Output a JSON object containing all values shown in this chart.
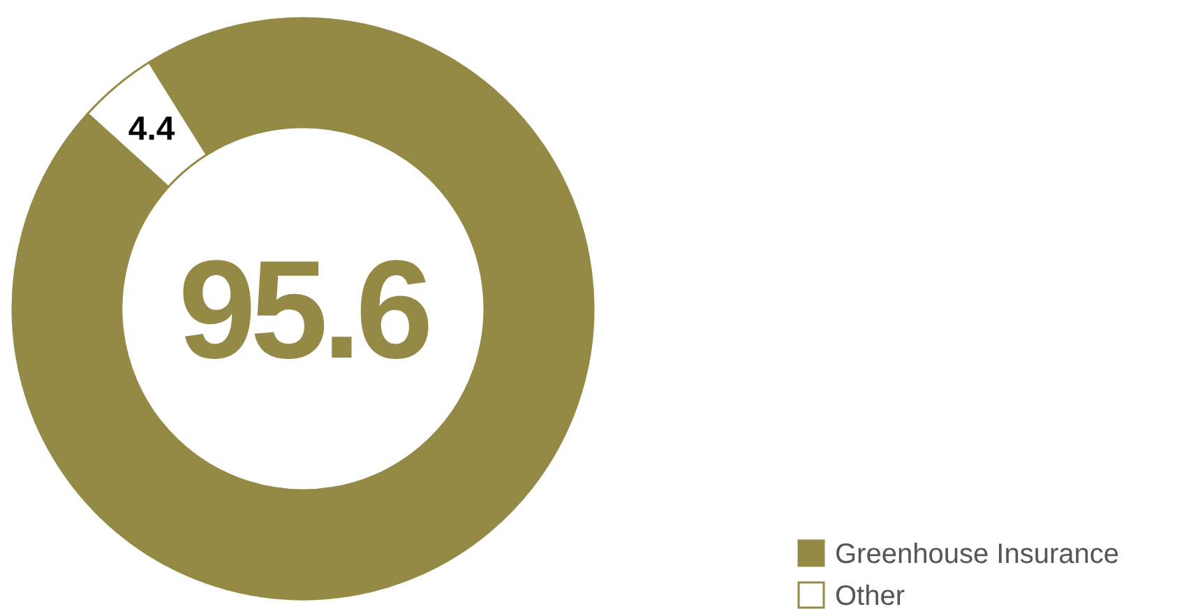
{
  "chart_data": {
    "type": "donut",
    "categories": [
      "Greenhouse Insurance",
      "Other"
    ],
    "values": [
      95.6,
      4.4
    ],
    "colors": [
      "#948a45",
      "#ffffff"
    ],
    "data_labels": true,
    "legend": "bottom right"
  }
}
